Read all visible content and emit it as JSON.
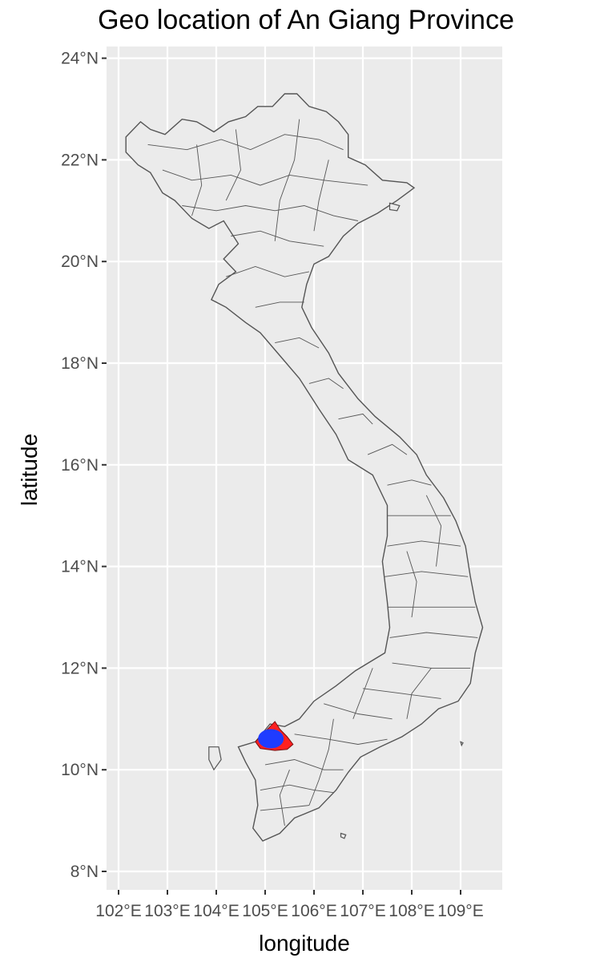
{
  "chart_data": {
    "type": "map",
    "title": "Geo location of An Giang Province",
    "xlabel": "longitude",
    "ylabel": "latitude",
    "x_ticks": [
      {
        "value": 102,
        "label": "102°E"
      },
      {
        "value": 103,
        "label": "103°E"
      },
      {
        "value": 104,
        "label": "104°E"
      },
      {
        "value": 105,
        "label": "105°E"
      },
      {
        "value": 106,
        "label": "106°E"
      },
      {
        "value": 107,
        "label": "107°E"
      },
      {
        "value": 108,
        "label": "108°E"
      },
      {
        "value": 109,
        "label": "109°E"
      }
    ],
    "y_ticks": [
      {
        "value": 8,
        "label": "8°N"
      },
      {
        "value": 10,
        "label": "10°N"
      },
      {
        "value": 12,
        "label": "12°N"
      },
      {
        "value": 14,
        "label": "14°N"
      },
      {
        "value": 16,
        "label": "16°N"
      },
      {
        "value": 18,
        "label": "18°N"
      },
      {
        "value": 20,
        "label": "20°N"
      },
      {
        "value": 22,
        "label": "22°N"
      },
      {
        "value": 24,
        "label": "24°N"
      }
    ],
    "xlim": [
      101.8,
      109.85
    ],
    "ylim": [
      7.6,
      24.2
    ],
    "grid": true,
    "highlight_region": {
      "name": "An Giang",
      "fill_outer": "#ff2020",
      "fill_inner": "#1f3cff",
      "center": [
        105.15,
        10.5
      ]
    },
    "colors": {
      "panel_background": "#ebebeb",
      "grid": "#ffffff",
      "region_fill": "#ebebeb",
      "region_border": "#555555"
    },
    "outline": [
      [
        102.15,
        22.45
      ],
      [
        102.45,
        22.75
      ],
      [
        102.65,
        22.6
      ],
      [
        102.95,
        22.5
      ],
      [
        103.3,
        22.8
      ],
      [
        103.6,
        22.75
      ],
      [
        103.95,
        22.55
      ],
      [
        104.25,
        22.75
      ],
      [
        104.6,
        22.85
      ],
      [
        104.85,
        23.05
      ],
      [
        105.15,
        23.05
      ],
      [
        105.4,
        23.3
      ],
      [
        105.65,
        23.3
      ],
      [
        105.9,
        23.05
      ],
      [
        106.25,
        22.95
      ],
      [
        106.5,
        22.75
      ],
      [
        106.7,
        22.5
      ],
      [
        106.7,
        22.05
      ],
      [
        107.05,
        21.9
      ],
      [
        107.4,
        21.6
      ],
      [
        107.9,
        21.55
      ],
      [
        108.05,
        21.45
      ],
      [
        107.7,
        21.2
      ],
      [
        107.3,
        20.95
      ],
      [
        106.9,
        20.75
      ],
      [
        106.6,
        20.5
      ],
      [
        106.3,
        20.1
      ],
      [
        106.0,
        19.95
      ],
      [
        105.85,
        19.55
      ],
      [
        105.75,
        19.1
      ],
      [
        105.95,
        18.7
      ],
      [
        106.3,
        18.2
      ],
      [
        106.5,
        17.8
      ],
      [
        106.9,
        17.3
      ],
      [
        107.25,
        16.95
      ],
      [
        107.75,
        16.55
      ],
      [
        108.1,
        16.2
      ],
      [
        108.3,
        15.8
      ],
      [
        108.65,
        15.35
      ],
      [
        108.9,
        14.9
      ],
      [
        109.1,
        14.4
      ],
      [
        109.2,
        13.8
      ],
      [
        109.3,
        13.3
      ],
      [
        109.45,
        12.8
      ],
      [
        109.3,
        12.3
      ],
      [
        109.2,
        11.7
      ],
      [
        108.95,
        11.35
      ],
      [
        108.55,
        11.2
      ],
      [
        108.2,
        10.9
      ],
      [
        107.8,
        10.65
      ],
      [
        107.35,
        10.45
      ],
      [
        106.95,
        10.25
      ],
      [
        106.7,
        9.95
      ],
      [
        106.45,
        9.6
      ],
      [
        106.1,
        9.25
      ],
      [
        105.6,
        9.05
      ],
      [
        105.3,
        8.75
      ],
      [
        104.95,
        8.6
      ],
      [
        104.75,
        8.85
      ],
      [
        104.85,
        9.3
      ],
      [
        104.8,
        9.8
      ],
      [
        104.6,
        10.15
      ],
      [
        104.45,
        10.45
      ],
      [
        104.8,
        10.55
      ],
      [
        105.1,
        10.9
      ],
      [
        105.4,
        10.85
      ],
      [
        105.7,
        11.0
      ],
      [
        106.0,
        11.35
      ],
      [
        106.45,
        11.65
      ],
      [
        106.85,
        11.95
      ],
      [
        107.45,
        12.3
      ],
      [
        107.55,
        12.8
      ],
      [
        107.5,
        13.3
      ],
      [
        107.4,
        14.1
      ],
      [
        107.5,
        14.6
      ],
      [
        107.5,
        15.2
      ],
      [
        107.2,
        15.8
      ],
      [
        106.7,
        16.1
      ],
      [
        106.45,
        16.6
      ],
      [
        106.1,
        17.1
      ],
      [
        105.7,
        17.7
      ],
      [
        105.3,
        18.15
      ],
      [
        104.9,
        18.6
      ],
      [
        104.6,
        18.8
      ],
      [
        104.2,
        19.1
      ],
      [
        103.9,
        19.25
      ],
      [
        104.05,
        19.55
      ],
      [
        104.4,
        19.8
      ],
      [
        104.15,
        20.05
      ],
      [
        104.45,
        20.35
      ],
      [
        104.15,
        20.8
      ],
      [
        103.85,
        20.65
      ],
      [
        103.5,
        20.85
      ],
      [
        103.15,
        21.2
      ],
      [
        102.9,
        21.35
      ],
      [
        102.65,
        21.75
      ],
      [
        102.4,
        21.9
      ],
      [
        102.15,
        22.15
      ]
    ],
    "islands": [
      [
        [
          103.85,
          10.45
        ],
        [
          104.05,
          10.45
        ],
        [
          104.1,
          10.2
        ],
        [
          103.95,
          10.0
        ],
        [
          103.85,
          10.2
        ]
      ],
      [
        [
          106.55,
          8.75
        ],
        [
          106.65,
          8.72
        ],
        [
          106.62,
          8.65
        ],
        [
          106.55,
          8.68
        ]
      ],
      [
        [
          107.55,
          21.15
        ],
        [
          107.75,
          21.1
        ],
        [
          107.7,
          21.0
        ],
        [
          107.55,
          21.02
        ]
      ],
      [
        [
          109.0,
          10.55
        ],
        [
          109.05,
          10.53
        ],
        [
          109.02,
          10.48
        ]
      ]
    ],
    "internal_borders": [
      [
        [
          102.6,
          22.3
        ],
        [
          103.4,
          22.2
        ],
        [
          104.1,
          22.4
        ],
        [
          104.7,
          22.2
        ],
        [
          105.4,
          22.5
        ],
        [
          106.1,
          22.4
        ],
        [
          106.6,
          22.2
        ]
      ],
      [
        [
          102.9,
          21.8
        ],
        [
          103.5,
          21.6
        ],
        [
          104.3,
          21.7
        ],
        [
          104.9,
          21.5
        ],
        [
          105.5,
          21.7
        ],
        [
          106.2,
          21.6
        ],
        [
          107.1,
          21.5
        ]
      ],
      [
        [
          103.3,
          21.1
        ],
        [
          104.0,
          21.0
        ],
        [
          104.6,
          21.1
        ],
        [
          105.2,
          21.0
        ],
        [
          105.8,
          21.1
        ],
        [
          106.4,
          20.9
        ],
        [
          106.9,
          20.8
        ]
      ],
      [
        [
          104.3,
          20.5
        ],
        [
          104.9,
          20.6
        ],
        [
          105.5,
          20.4
        ],
        [
          106.2,
          20.3
        ]
      ],
      [
        [
          104.2,
          19.7
        ],
        [
          104.8,
          19.9
        ],
        [
          105.4,
          19.7
        ],
        [
          105.9,
          19.8
        ]
      ],
      [
        [
          104.8,
          19.1
        ],
        [
          105.3,
          19.2
        ],
        [
          105.8,
          19.2
        ]
      ],
      [
        [
          105.2,
          18.4
        ],
        [
          105.7,
          18.5
        ],
        [
          106.1,
          18.3
        ]
      ],
      [
        [
          105.9,
          17.6
        ],
        [
          106.3,
          17.7
        ],
        [
          106.6,
          17.5
        ]
      ],
      [
        [
          106.5,
          16.9
        ],
        [
          107.0,
          17.0
        ],
        [
          107.2,
          16.8
        ]
      ],
      [
        [
          107.1,
          16.2
        ],
        [
          107.6,
          16.4
        ],
        [
          107.9,
          16.2
        ]
      ],
      [
        [
          107.5,
          15.6
        ],
        [
          108.0,
          15.7
        ],
        [
          108.4,
          15.6
        ]
      ],
      [
        [
          107.5,
          15.0
        ],
        [
          108.1,
          15.0
        ],
        [
          108.8,
          15.0
        ]
      ],
      [
        [
          107.5,
          14.4
        ],
        [
          108.2,
          14.5
        ],
        [
          109.0,
          14.4
        ]
      ],
      [
        [
          107.45,
          13.8
        ],
        [
          108.2,
          13.9
        ],
        [
          109.15,
          13.8
        ]
      ],
      [
        [
          107.5,
          13.2
        ],
        [
          108.4,
          13.2
        ],
        [
          109.3,
          13.2
        ]
      ],
      [
        [
          107.55,
          12.6
        ],
        [
          108.3,
          12.7
        ],
        [
          109.35,
          12.6
        ]
      ],
      [
        [
          107.6,
          12.1
        ],
        [
          108.4,
          12.0
        ],
        [
          109.2,
          12.0
        ]
      ],
      [
        [
          107.0,
          11.6
        ],
        [
          107.8,
          11.5
        ],
        [
          108.6,
          11.4
        ]
      ],
      [
        [
          106.2,
          11.3
        ],
        [
          106.9,
          11.1
        ],
        [
          107.6,
          11.0
        ]
      ],
      [
        [
          105.6,
          10.7
        ],
        [
          106.3,
          10.6
        ],
        [
          106.9,
          10.5
        ],
        [
          107.5,
          10.6
        ]
      ],
      [
        [
          105.0,
          10.1
        ],
        [
          105.6,
          10.2
        ],
        [
          106.2,
          10.0
        ],
        [
          106.6,
          10.0
        ]
      ],
      [
        [
          104.9,
          9.6
        ],
        [
          105.5,
          9.7
        ],
        [
          106.0,
          9.6
        ],
        [
          106.4,
          9.55
        ]
      ],
      [
        [
          104.9,
          9.2
        ],
        [
          105.4,
          9.25
        ],
        [
          105.9,
          9.3
        ]
      ],
      [
        [
          107.9,
          11.0
        ],
        [
          108.0,
          11.5
        ],
        [
          108.4,
          12.0
        ]
      ],
      [
        [
          106.8,
          11.0
        ],
        [
          107.0,
          11.5
        ],
        [
          107.2,
          12.0
        ]
      ],
      [
        [
          105.9,
          9.3
        ],
        [
          106.1,
          9.8
        ],
        [
          106.3,
          10.4
        ],
        [
          106.4,
          11.0
        ]
      ],
      [
        [
          105.4,
          8.9
        ],
        [
          105.3,
          9.5
        ],
        [
          105.5,
          10.0
        ]
      ],
      [
        [
          108.5,
          14.0
        ],
        [
          108.6,
          14.8
        ],
        [
          108.3,
          15.4
        ]
      ],
      [
        [
          108.0,
          13.0
        ],
        [
          108.1,
          13.7
        ],
        [
          107.9,
          14.3
        ]
      ],
      [
        [
          104.2,
          21.2
        ],
        [
          104.5,
          21.8
        ],
        [
          104.4,
          22.6
        ]
      ],
      [
        [
          105.2,
          20.4
        ],
        [
          105.3,
          21.2
        ],
        [
          105.6,
          22.0
        ],
        [
          105.7,
          22.8
        ]
      ],
      [
        [
          106.0,
          20.6
        ],
        [
          106.1,
          21.2
        ],
        [
          106.3,
          22.0
        ]
      ],
      [
        [
          103.5,
          20.9
        ],
        [
          103.7,
          21.5
        ],
        [
          103.6,
          22.3
        ]
      ]
    ]
  }
}
